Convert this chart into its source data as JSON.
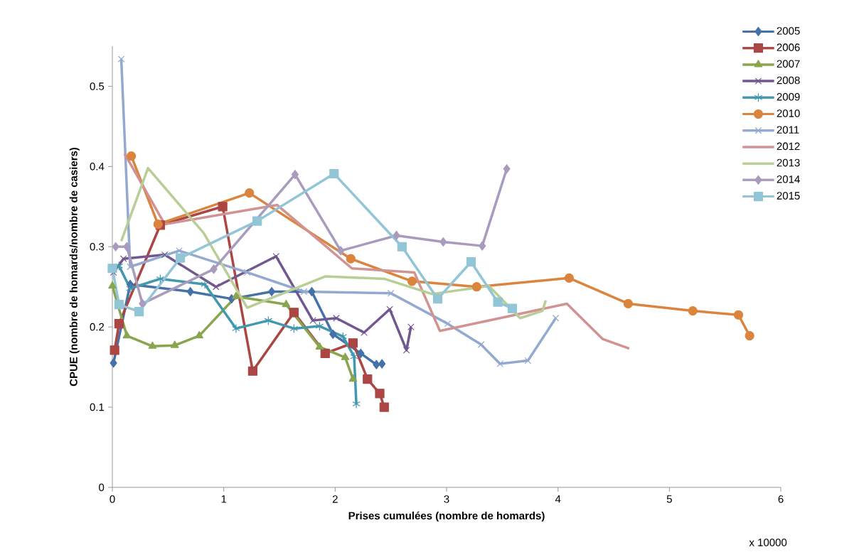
{
  "chart_data": {
    "type": "line",
    "xlabel": "Prises cumulées (nombre de homards)",
    "ylabel": "CPUE (nombre de homards/nombre de casiers)",
    "annotations": [
      "x 10000"
    ],
    "xlim": [
      0,
      6
    ],
    "ylim": [
      0,
      0.55
    ],
    "xticks": [
      0,
      1,
      2,
      3,
      4,
      5,
      6
    ],
    "yticks": [
      0,
      0.1,
      0.2,
      0.3,
      0.4,
      0.5
    ],
    "grid": false,
    "legend": "top right",
    "line_style": "solid",
    "series": [
      {
        "name": "2005",
        "color": "#4572a7",
        "marker": "diamond",
        "x": [
          0.01,
          0.16,
          0.7,
          1.07,
          1.43,
          1.79,
          1.98,
          2.23,
          2.37,
          2.42
        ],
        "values": [
          0.155,
          0.253,
          0.244,
          0.235,
          0.244,
          0.244,
          0.191,
          0.167,
          0.153,
          0.154
        ]
      },
      {
        "name": "2006",
        "color": "#aa4643",
        "marker": "square",
        "x": [
          0.02,
          0.06,
          0.43,
          0.99,
          1.26,
          1.63,
          1.91,
          2.16,
          2.29,
          2.4,
          2.44
        ],
        "values": [
          0.171,
          0.204,
          0.327,
          0.35,
          0.145,
          0.218,
          0.167,
          0.18,
          0.135,
          0.117,
          0.1
        ]
      },
      {
        "name": "2007",
        "color": "#89a54e",
        "marker": "triangle",
        "x": [
          0.0,
          0.13,
          0.36,
          0.56,
          0.78,
          1.11,
          1.56,
          1.86,
          2.09,
          2.16
        ],
        "values": [
          0.251,
          0.189,
          0.176,
          0.177,
          0.189,
          0.238,
          0.228,
          0.175,
          0.162,
          0.135
        ]
      },
      {
        "name": "2008",
        "color": "#71588f",
        "marker": "cross",
        "x": [
          0.01,
          0.1,
          0.47,
          0.93,
          1.47,
          1.8,
          2.01,
          2.26,
          2.49,
          2.64,
          2.68
        ],
        "values": [
          0.268,
          0.285,
          0.29,
          0.25,
          0.288,
          0.208,
          0.211,
          0.193,
          0.222,
          0.171,
          0.2
        ]
      },
      {
        "name": "2009",
        "color": "#4198af",
        "marker": "cross",
        "x": [
          0.06,
          0.16,
          0.43,
          0.83,
          1.11,
          1.4,
          1.63,
          1.86,
          2.07,
          2.17,
          2.19
        ],
        "values": [
          0.276,
          0.248,
          0.26,
          0.253,
          0.198,
          0.208,
          0.198,
          0.201,
          0.188,
          0.163,
          0.104
        ]
      },
      {
        "name": "2010",
        "color": "#db843d",
        "marker": "circle",
        "x": [
          0.17,
          0.41,
          1.23,
          2.14,
          2.69,
          3.27,
          4.1,
          4.63,
          5.21,
          5.62,
          5.72
        ],
        "values": [
          0.413,
          0.328,
          0.367,
          0.285,
          0.257,
          0.25,
          0.261,
          0.229,
          0.22,
          0.215,
          0.189
        ]
      },
      {
        "name": "2011",
        "color": "#93a9cf",
        "marker": "cross",
        "x": [
          0.08,
          0.16,
          0.6,
          1.21,
          1.72,
          2.5,
          3.01,
          3.31,
          3.48,
          3.73,
          3.98
        ],
        "values": [
          0.534,
          0.275,
          0.295,
          0.268,
          0.244,
          0.242,
          0.204,
          0.178,
          0.154,
          0.158,
          0.211
        ]
      },
      {
        "name": "2012",
        "color": "#d19392",
        "marker": "none",
        "x": [
          0.11,
          0.47,
          1.48,
          2.15,
          2.71,
          2.94,
          3.48,
          4.08,
          4.4,
          4.64
        ],
        "values": [
          0.416,
          0.328,
          0.352,
          0.273,
          0.268,
          0.195,
          0.211,
          0.229,
          0.185,
          0.173
        ]
      },
      {
        "name": "2013",
        "color": "#b9cd96",
        "marker": "none",
        "x": [
          0.08,
          0.32,
          0.82,
          1.21,
          1.91,
          2.44,
          2.87,
          3.38,
          3.66,
          3.86,
          3.89
        ],
        "values": [
          0.307,
          0.398,
          0.317,
          0.224,
          0.263,
          0.26,
          0.241,
          0.251,
          0.211,
          0.22,
          0.233
        ]
      },
      {
        "name": "2014",
        "color": "#a99bbd",
        "marker": "diamond",
        "x": [
          0.03,
          0.13,
          0.27,
          0.91,
          1.64,
          2.05,
          2.55,
          2.97,
          3.32,
          3.54
        ],
        "values": [
          0.3,
          0.3,
          0.229,
          0.272,
          0.39,
          0.295,
          0.314,
          0.306,
          0.301,
          0.397
        ]
      },
      {
        "name": "2015",
        "color": "#92c5d6",
        "marker": "square",
        "x": [
          0.0,
          0.06,
          0.24,
          0.61,
          1.3,
          1.99,
          2.6,
          2.92,
          3.22,
          3.46,
          3.59
        ],
        "values": [
          0.273,
          0.228,
          0.219,
          0.286,
          0.332,
          0.391,
          0.3,
          0.235,
          0.281,
          0.231,
          0.223
        ]
      }
    ]
  }
}
